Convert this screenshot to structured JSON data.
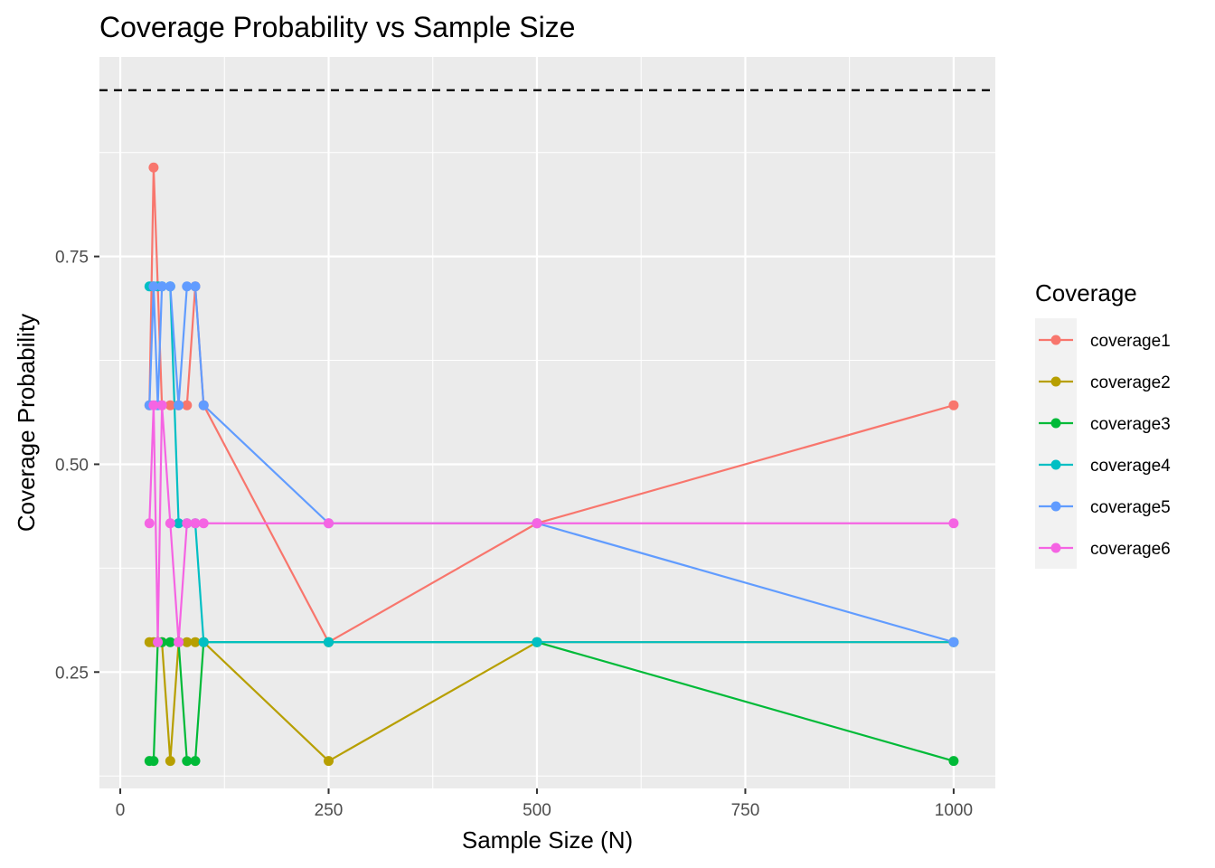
{
  "chart_data": {
    "type": "line",
    "title": "Coverage Probability vs Sample Size",
    "xlabel": "Sample Size (N)",
    "ylabel": "Coverage Probability",
    "xlim": [
      -25,
      1050
    ],
    "ylim": [
      0.11,
      0.99
    ],
    "x_ticks": [
      0,
      250,
      500,
      750,
      1000
    ],
    "x_tick_labels": [
      "0",
      "250",
      "500",
      "750",
      "1000"
    ],
    "y_ticks": [
      0.25,
      0.5,
      0.75
    ],
    "y_tick_labels": [
      "0.25",
      "0.50",
      "0.75"
    ],
    "reference_line": {
      "y": 0.95,
      "style": "dashed",
      "color": "#000000"
    },
    "legend": {
      "title": "Coverage",
      "position": "right"
    },
    "grid": true,
    "panel_background": "#ebebeb",
    "x": [
      35,
      40,
      45,
      50,
      60,
      70,
      80,
      90,
      100,
      250,
      500,
      1000
    ],
    "series": [
      {
        "name": "coverage1",
        "color": "#F8766D",
        "values": [
          0.571,
          0.857,
          0.714,
          0.571,
          0.571,
          0.571,
          0.571,
          0.714,
          0.571,
          0.286,
          0.429,
          0.571
        ]
      },
      {
        "name": "coverage2",
        "color": "#B79F00",
        "values": [
          0.286,
          0.286,
          0.286,
          0.286,
          0.143,
          0.286,
          0.286,
          0.286,
          0.286,
          0.143,
          0.286,
          0.286
        ]
      },
      {
        "name": "coverage3",
        "color": "#00BA38",
        "values": [
          0.143,
          0.143,
          0.286,
          0.286,
          0.286,
          0.286,
          0.143,
          0.143,
          0.286,
          0.286,
          0.286,
          0.143
        ]
      },
      {
        "name": "coverage4",
        "color": "#00BFC4",
        "values": [
          0.714,
          0.714,
          0.714,
          0.714,
          0.714,
          0.429,
          0.429,
          0.429,
          0.286,
          0.286,
          0.286,
          0.286
        ]
      },
      {
        "name": "coverage5",
        "color": "#619CFF",
        "values": [
          0.571,
          0.714,
          0.571,
          0.714,
          0.714,
          0.571,
          0.714,
          0.714,
          0.571,
          0.429,
          0.429,
          0.286
        ]
      },
      {
        "name": "coverage6",
        "color": "#F564E3",
        "values": [
          0.429,
          0.571,
          0.286,
          0.571,
          0.429,
          0.286,
          0.429,
          0.429,
          0.429,
          0.429,
          0.429,
          0.429
        ]
      }
    ]
  }
}
